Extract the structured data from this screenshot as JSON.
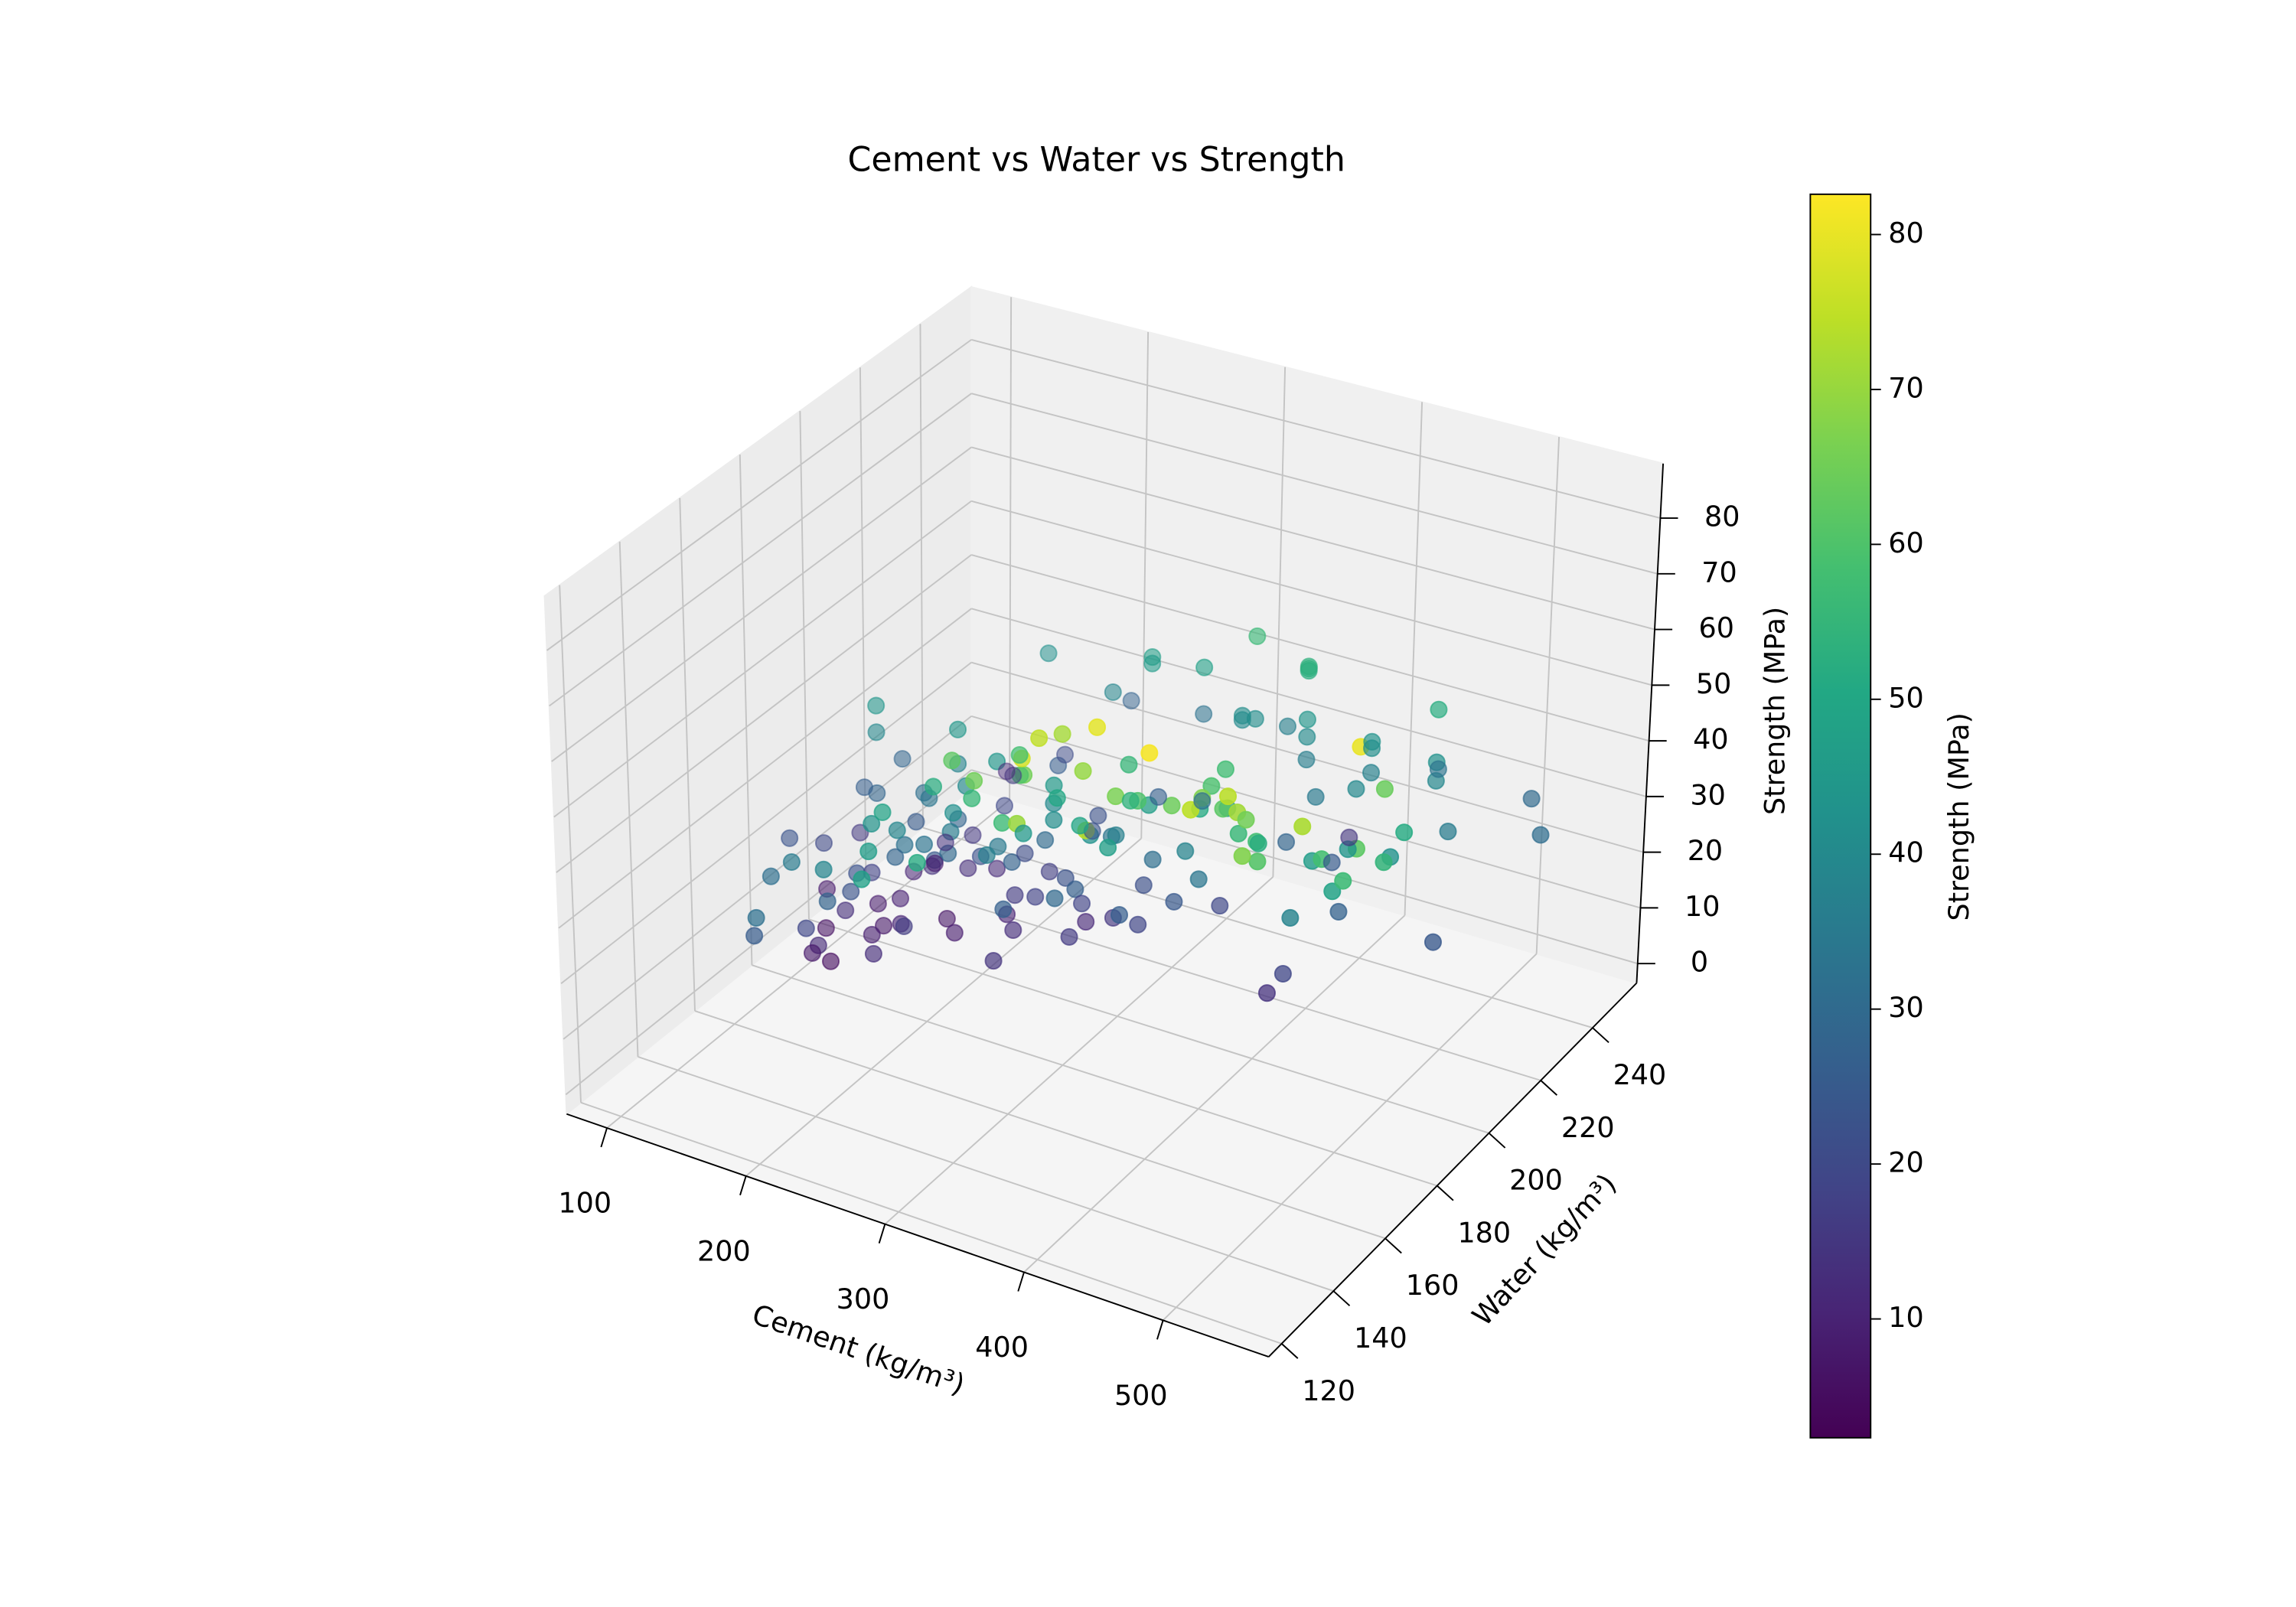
{
  "chart_data": {
    "type": "scatter3d",
    "title": "Cement vs Water vs Strength",
    "xlabel": "Cement (kg/m³)",
    "ylabel": "Water (kg/m³)",
    "zlabel": "Strength (MPa)",
    "colorbar_label": "Strength (MPa)",
    "colormap": "viridis",
    "grid": true,
    "xlim": [
      71,
      576
    ],
    "ylim": [
      115,
      257
    ],
    "zlim": [
      -3.5,
      89.8
    ],
    "clim": [
      2.33,
      82.6
    ],
    "xticks": [
      100,
      200,
      300,
      400,
      500
    ],
    "yticks": [
      120,
      140,
      160,
      180,
      200,
      220,
      240
    ],
    "zticks": [
      0,
      10,
      20,
      30,
      40,
      50,
      60,
      70,
      80
    ],
    "cticks": [
      10,
      20,
      30,
      40,
      50,
      60,
      70,
      80
    ],
    "x": [
      540,
      540,
      332.5,
      332.5,
      198.6,
      266,
      380,
      380,
      266,
      475,
      198.6,
      198.6,
      427.5,
      190,
      304,
      380,
      139.6,
      342,
      380,
      475,
      427.5,
      139.6,
      139.6,
      139.6,
      380,
      380,
      342,
      475,
      427.5,
      237.5,
      102,
      168,
      145,
      152,
      160,
      176,
      181,
      190,
      200,
      213,
      220,
      230,
      236,
      145,
      154,
      165,
      172,
      185,
      194,
      203,
      212,
      225,
      239,
      252,
      255,
      260,
      266,
      275,
      280,
      288,
      296,
      300,
      310,
      314,
      323,
      330,
      340,
      349,
      356,
      362,
      375,
      385,
      393,
      400,
      410,
      419,
      425,
      436,
      446,
      450,
      475,
      480,
      485,
      491,
      500,
      505,
      516,
      525,
      528,
      530,
      540,
      480,
      446,
      397,
      376,
      333,
      315,
      322,
      350,
      289,
      250,
      277,
      310,
      425,
      374,
      362,
      389,
      469,
      438,
      351,
      295,
      140,
      154,
      160,
      182,
      200,
      222,
      245,
      259,
      274,
      290,
      150,
      135,
      120,
      110,
      113,
      105,
      122,
      131,
      146,
      156,
      173,
      186,
      198,
      231,
      243,
      262,
      285,
      300,
      318,
      330,
      276,
      305,
      338,
      354,
      366,
      392,
      403,
      420,
      332,
      288,
      252,
      210,
      188,
      160,
      134,
      214,
      280,
      350,
      450,
      510,
      380,
      540,
      500,
      520,
      460,
      440,
      425,
      470,
      510,
      535,
      475,
      470,
      455,
      390,
      366,
      340,
      300,
      268,
      240,
      215,
      190,
      170,
      158,
      150,
      165,
      182,
      210,
      228,
      198,
      236,
      158,
      170,
      286,
      255
    ],
    "y": [
      162,
      162,
      228,
      228,
      192,
      228,
      228,
      228,
      228,
      228,
      192,
      192,
      228,
      228,
      228,
      228,
      192,
      228,
      228,
      228,
      228,
      192,
      192,
      192,
      228,
      228,
      228,
      228,
      228,
      228,
      192,
      192,
      178,
      184,
      175,
      191,
      204,
      186,
      183,
      193,
      178,
      174,
      194,
      202,
      193,
      199,
      210,
      215,
      208,
      171,
      164,
      182,
      186,
      185,
      192,
      176,
      190,
      193,
      186,
      182,
      178,
      184,
      192,
      170,
      187,
      174,
      192,
      178,
      182,
      164,
      186,
      186,
      192,
      178,
      182,
      172,
      154,
      218,
      162,
      166,
      181,
      192,
      146,
      151,
      140,
      195,
      162,
      189,
      179,
      146,
      173,
      145,
      154,
      148,
      147,
      148,
      156,
      146,
      153,
      152,
      158,
      151,
      142,
      122,
      124,
      132,
      145,
      137,
      138,
      144,
      166,
      175,
      187,
      180,
      196,
      190,
      198,
      189,
      175,
      201,
      187,
      166,
      171,
      183,
      200,
      186,
      178,
      196,
      205,
      209,
      208,
      184,
      168,
      173,
      200,
      203,
      209,
      194,
      198,
      200,
      192,
      170,
      174,
      181,
      193,
      204,
      215,
      220,
      218,
      214,
      220,
      216,
      222,
      235,
      230,
      240,
      246,
      240,
      236,
      242,
      247,
      245,
      235,
      220,
      205,
      200,
      190,
      192,
      176,
      170,
      160,
      155,
      162,
      171,
      160,
      170,
      165,
      165,
      168,
      170,
      172,
      174,
      168,
      158,
      150,
      150,
      154,
      156,
      151,
      145,
      142,
      140,
      135,
      134,
      130
    ],
    "z": [
      79.99,
      61.89,
      40.27,
      41.05,
      44.3,
      47.03,
      43.7,
      36.45,
      45.85,
      39.29,
      38.07,
      28.02,
      43.01,
      42.33,
      47.81,
      52.91,
      39.36,
      56.14,
      40.56,
      42.62,
      41.84,
      28.24,
      8.06,
      44.21,
      52.52,
      53.3,
      41.15,
      52.12,
      37.43,
      38.6,
      7.84,
      25.2,
      13.2,
      18.1,
      22.4,
      31.5,
      12.6,
      33.7,
      24.5,
      21.9,
      29.4,
      35.8,
      16.2,
      10.1,
      9.7,
      13.9,
      15.4,
      19.6,
      11.8,
      32.6,
      38.9,
      40.3,
      44.1,
      27.3,
      18.2,
      34.6,
      30.2,
      22.7,
      39.6,
      45.2,
      41.3,
      26.5,
      33.3,
      50.1,
      36.7,
      42.9,
      31.4,
      55.3,
      46.8,
      47.5,
      38.2,
      33.9,
      44.6,
      51.2,
      57.3,
      59.4,
      64.3,
      39.6,
      61.8,
      55.9,
      46.2,
      43.7,
      71.3,
      60.8,
      67.4,
      42.8,
      58.2,
      51.4,
      63.9,
      72.3,
      54.5,
      74.2,
      67.3,
      66.4,
      69.7,
      65.2,
      60.3,
      56.6,
      71.7,
      55.8,
      52.3,
      62.1,
      64.9,
      73.9,
      70.1,
      77.3,
      79.4,
      74.5,
      81.7,
      74.9,
      58.1,
      4.8,
      7.3,
      9.1,
      6.9,
      8.3,
      9.9,
      12.7,
      14.3,
      11.2,
      15.8,
      12.3,
      7.6,
      5.9,
      15.4,
      19.6,
      23.2,
      26.3,
      28.4,
      8.7,
      13.7,
      10.4,
      12.8,
      16.6,
      20.8,
      17.1,
      23.3,
      18.4,
      15.2,
      21.6,
      18.9,
      27.1,
      29.6,
      26.1,
      24.4,
      19.7,
      28.2,
      34.9,
      25.2,
      31.7,
      26.6,
      22.3,
      25.8,
      20.6,
      16.9,
      11.5,
      27.6,
      32.4,
      36.8,
      33.3,
      29.8,
      14.7,
      30.9,
      35.6,
      24.1,
      27.4,
      19.3,
      13.8,
      37.9,
      48.4,
      56.7,
      65.2,
      57.8,
      52.3,
      59.8,
      53.6,
      49.3,
      44.8,
      37.1,
      41.7,
      33.2,
      28.1,
      22.8,
      19.4,
      31.5,
      35.3,
      27.9,
      43.3,
      48.9,
      38.7,
      46.3,
      25.6,
      31.9,
      51.7,
      47.9
    ]
  }
}
